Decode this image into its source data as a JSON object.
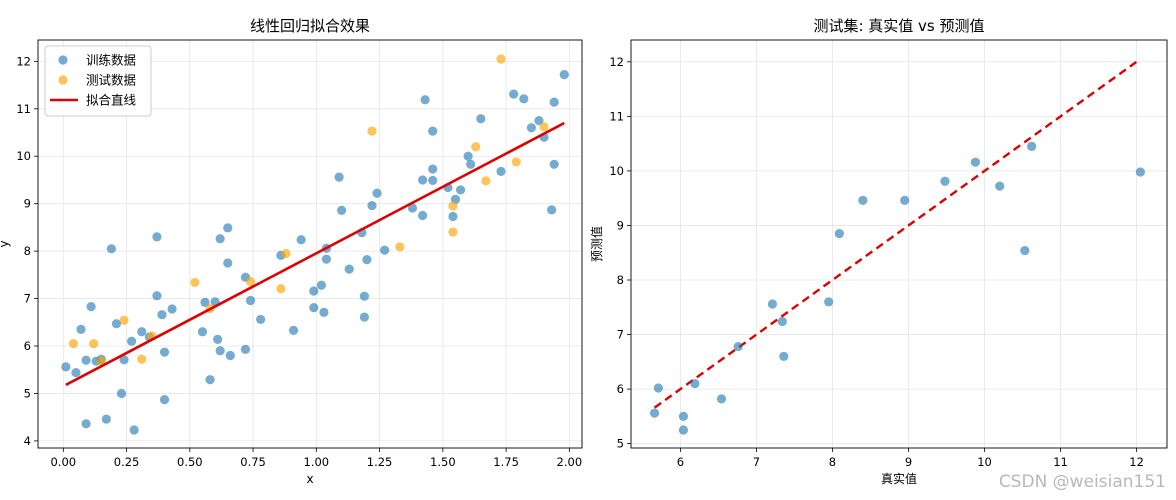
{
  "watermark": "CSDN @weisian151",
  "chart_data": [
    {
      "type": "scatter",
      "title": "线性回归拟合效果",
      "xlabel": "x",
      "ylabel": "y",
      "xlim": [
        -0.1,
        2.05
      ],
      "ylim": [
        3.85,
        12.45
      ],
      "xticks": [
        0.0,
        0.25,
        0.5,
        0.75,
        1.0,
        1.25,
        1.5,
        1.75,
        2.0
      ],
      "xtick_labels": [
        "0.00",
        "0.25",
        "0.50",
        "0.75",
        "1.00",
        "1.25",
        "1.50",
        "1.75",
        "2.00"
      ],
      "yticks": [
        4,
        5,
        6,
        7,
        8,
        9,
        10,
        11,
        12
      ],
      "ytick_labels": [
        "4",
        "5",
        "6",
        "7",
        "8",
        "9",
        "10",
        "11",
        "12"
      ],
      "grid": true,
      "legend_position": "top-left",
      "colors": {
        "train": "#1f77b4",
        "test": "#ffa500",
        "fit": "#e00000"
      },
      "series": [
        {
          "name": "训练数据",
          "points": [
            [
              0.01,
              5.56
            ],
            [
              0.05,
              5.44
            ],
            [
              0.07,
              6.35
            ],
            [
              0.09,
              5.7
            ],
            [
              0.09,
              4.36
            ],
            [
              0.11,
              6.83
            ],
            [
              0.13,
              5.68
            ],
            [
              0.15,
              5.72
            ],
            [
              0.17,
              4.46
            ],
            [
              0.19,
              8.05
            ],
            [
              0.21,
              6.47
            ],
            [
              0.23,
              5.0
            ],
            [
              0.24,
              5.71
            ],
            [
              0.27,
              6.1
            ],
            [
              0.28,
              4.23
            ],
            [
              0.31,
              6.3
            ],
            [
              0.34,
              6.19
            ],
            [
              0.37,
              7.06
            ],
            [
              0.37,
              8.3
            ],
            [
              0.39,
              6.66
            ],
            [
              0.4,
              4.87
            ],
            [
              0.4,
              5.87
            ],
            [
              0.43,
              6.78
            ],
            [
              0.55,
              6.3
            ],
            [
              0.56,
              6.92
            ],
            [
              0.58,
              5.29
            ],
            [
              0.6,
              6.93
            ],
            [
              0.61,
              6.14
            ],
            [
              0.62,
              5.9
            ],
            [
              0.62,
              8.26
            ],
            [
              0.65,
              8.49
            ],
            [
              0.65,
              7.75
            ],
            [
              0.66,
              5.8
            ],
            [
              0.72,
              7.45
            ],
            [
              0.72,
              5.93
            ],
            [
              0.74,
              6.96
            ],
            [
              0.78,
              6.56
            ],
            [
              0.86,
              7.91
            ],
            [
              0.91,
              6.33
            ],
            [
              0.94,
              8.24
            ],
            [
              0.99,
              7.16
            ],
            [
              0.99,
              6.81
            ],
            [
              1.02,
              7.28
            ],
            [
              1.03,
              6.71
            ],
            [
              1.04,
              8.06
            ],
            [
              1.04,
              7.83
            ],
            [
              1.09,
              9.56
            ],
            [
              1.1,
              8.86
            ],
            [
              1.13,
              7.62
            ],
            [
              1.18,
              8.39
            ],
            [
              1.19,
              7.05
            ],
            [
              1.19,
              6.61
            ],
            [
              1.2,
              7.82
            ],
            [
              1.22,
              8.96
            ],
            [
              1.24,
              9.22
            ],
            [
              1.27,
              8.02
            ],
            [
              1.38,
              8.91
            ],
            [
              1.42,
              9.5
            ],
            [
              1.42,
              8.75
            ],
            [
              1.43,
              11.19
            ],
            [
              1.46,
              9.73
            ],
            [
              1.46,
              9.49
            ],
            [
              1.46,
              10.53
            ],
            [
              1.52,
              9.34
            ],
            [
              1.54,
              8.73
            ],
            [
              1.55,
              9.09
            ],
            [
              1.57,
              9.29
            ],
            [
              1.6,
              10.0
            ],
            [
              1.61,
              9.83
            ],
            [
              1.65,
              10.79
            ],
            [
              1.73,
              9.68
            ],
            [
              1.78,
              11.31
            ],
            [
              1.82,
              11.21
            ],
            [
              1.85,
              10.6
            ],
            [
              1.88,
              10.75
            ],
            [
              1.9,
              10.4
            ],
            [
              1.93,
              8.87
            ],
            [
              1.94,
              9.83
            ],
            [
              1.94,
              11.14
            ],
            [
              1.98,
              11.72
            ]
          ]
        },
        {
          "name": "测试数据",
          "points": [
            [
              0.04,
              6.05
            ],
            [
              0.12,
              6.05
            ],
            [
              0.15,
              5.68
            ],
            [
              0.24,
              6.54
            ],
            [
              0.31,
              5.72
            ],
            [
              0.35,
              6.21
            ],
            [
              0.52,
              7.34
            ],
            [
              0.58,
              6.79
            ],
            [
              0.74,
              7.36
            ],
            [
              0.86,
              7.21
            ],
            [
              0.88,
              7.95
            ],
            [
              1.22,
              10.53
            ],
            [
              1.33,
              8.09
            ],
            [
              1.54,
              8.95
            ],
            [
              1.54,
              8.4
            ],
            [
              1.63,
              10.2
            ],
            [
              1.67,
              9.48
            ],
            [
              1.73,
              12.05
            ],
            [
              1.79,
              9.88
            ],
            [
              1.9,
              10.62
            ]
          ]
        },
        {
          "name": "拟合直线",
          "type": "line",
          "points": [
            [
              0.01,
              5.18
            ],
            [
              1.98,
              10.7
            ]
          ]
        }
      ]
    },
    {
      "type": "scatter",
      "title": "测试集: 真实值 vs 预测值",
      "xlabel": "真实值",
      "ylabel": "预测值",
      "xlim": [
        5.35,
        12.4
      ],
      "ylim": [
        4.92,
        12.4
      ],
      "xticks": [
        6,
        7,
        8,
        9,
        10,
        11,
        12
      ],
      "xtick_labels": [
        "6",
        "7",
        "8",
        "9",
        "10",
        "11",
        "12"
      ],
      "yticks": [
        5,
        6,
        7,
        8,
        9,
        10,
        11,
        12
      ],
      "ytick_labels": [
        "5",
        "6",
        "7",
        "8",
        "9",
        "10",
        "11",
        "12"
      ],
      "grid": true,
      "colors": {
        "points": "#1f77b4",
        "reference": "#e00000"
      },
      "points": [
        [
          5.66,
          5.56
        ],
        [
          5.71,
          6.02
        ],
        [
          6.04,
          5.5
        ],
        [
          6.04,
          5.25
        ],
        [
          6.19,
          6.1
        ],
        [
          6.54,
          5.82
        ],
        [
          6.76,
          6.78
        ],
        [
          7.21,
          7.56
        ],
        [
          7.34,
          7.24
        ],
        [
          7.36,
          6.6
        ],
        [
          7.95,
          7.6
        ],
        [
          8.09,
          8.85
        ],
        [
          8.4,
          9.46
        ],
        [
          8.95,
          9.46
        ],
        [
          9.48,
          9.81
        ],
        [
          9.88,
          10.16
        ],
        [
          10.2,
          9.72
        ],
        [
          10.53,
          8.54
        ],
        [
          10.62,
          10.45
        ],
        [
          12.05,
          9.98
        ]
      ],
      "reference_line": [
        [
          5.66,
          5.66
        ],
        [
          12.05,
          12.05
        ]
      ]
    }
  ]
}
